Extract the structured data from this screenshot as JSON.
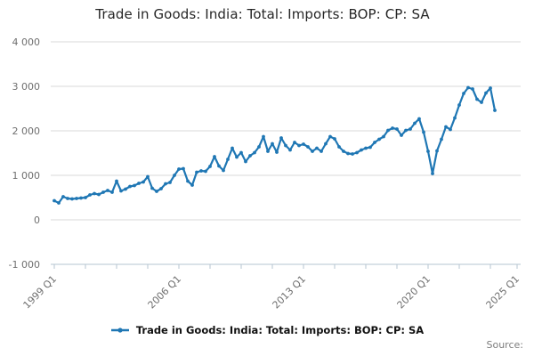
{
  "title": "Trade in Goods: India: Total: Imports: BOP: CP: SA",
  "legend": {
    "label": "Trade in Goods: India: Total: Imports: BOP: CP: SA"
  },
  "source": {
    "label": "Source:"
  },
  "colors": {
    "line": "#1f77b4",
    "marker": "#1f77b4",
    "grid": "#d9d9d9",
    "axis": "#b6c4d2",
    "tick_label": "#6f6f6f",
    "title_text": "#262626",
    "legend_text": "#111111",
    "source_text": "#7d7d7d",
    "background": "#ffffff"
  },
  "y_axis": {
    "min": -1000,
    "max": 4000,
    "step": 1000,
    "tick_labels": [
      "4 000",
      "3 000",
      "2 000",
      "1 000",
      "0",
      "-1 000"
    ]
  },
  "x_axis": {
    "labeled_ticks": [
      "1999 Q1",
      "2006 Q1",
      "2013 Q1",
      "2020 Q1",
      "2025 Q1"
    ],
    "range_start": "1999 Q1",
    "range_end": "2025 Q1"
  },
  "chart_data": {
    "type": "line",
    "title": "Trade in Goods: India: Total: Imports: BOP: CP: SA",
    "xlabel": "",
    "ylabel": "",
    "ylim": [
      -1000,
      4000
    ],
    "grid": "horizontal",
    "legend_position": "bottom",
    "marker": "circle",
    "frequency": "quarterly",
    "series": [
      {
        "name": "Trade in Goods: India: Total: Imports: BOP: CP: SA",
        "quarters": [
          "1999 Q1",
          "1999 Q2",
          "1999 Q3",
          "1999 Q4",
          "2000 Q1",
          "2000 Q2",
          "2000 Q3",
          "2000 Q4",
          "2001 Q1",
          "2001 Q2",
          "2001 Q3",
          "2001 Q4",
          "2002 Q1",
          "2002 Q2",
          "2002 Q3",
          "2002 Q4",
          "2003 Q1",
          "2003 Q2",
          "2003 Q3",
          "2003 Q4",
          "2004 Q1",
          "2004 Q2",
          "2004 Q3",
          "2004 Q4",
          "2005 Q1",
          "2005 Q2",
          "2005 Q3",
          "2005 Q4",
          "2006 Q1",
          "2006 Q2",
          "2006 Q3",
          "2006 Q4",
          "2007 Q1",
          "2007 Q2",
          "2007 Q3",
          "2007 Q4",
          "2008 Q1",
          "2008 Q2",
          "2008 Q3",
          "2008 Q4",
          "2009 Q1",
          "2009 Q2",
          "2009 Q3",
          "2009 Q4",
          "2010 Q1",
          "2010 Q2",
          "2010 Q3",
          "2010 Q4",
          "2011 Q1",
          "2011 Q2",
          "2011 Q3",
          "2011 Q4",
          "2012 Q1",
          "2012 Q2",
          "2012 Q3",
          "2012 Q4",
          "2013 Q1",
          "2013 Q2",
          "2013 Q3",
          "2013 Q4",
          "2014 Q1",
          "2014 Q2",
          "2014 Q3",
          "2014 Q4",
          "2015 Q1",
          "2015 Q2",
          "2015 Q3",
          "2015 Q4",
          "2016 Q1",
          "2016 Q2",
          "2016 Q3",
          "2016 Q4",
          "2017 Q1",
          "2017 Q2",
          "2017 Q3",
          "2017 Q4",
          "2018 Q1",
          "2018 Q2",
          "2018 Q3",
          "2018 Q4",
          "2019 Q1",
          "2019 Q2",
          "2019 Q3",
          "2019 Q4",
          "2020 Q1",
          "2020 Q2",
          "2020 Q3",
          "2020 Q4",
          "2021 Q1",
          "2021 Q2",
          "2021 Q3",
          "2021 Q4",
          "2022 Q1",
          "2022 Q2",
          "2022 Q3",
          "2022 Q4",
          "2023 Q1",
          "2023 Q2",
          "2023 Q3",
          "2023 Q4"
        ],
        "values": [
          430,
          380,
          520,
          480,
          470,
          480,
          490,
          500,
          560,
          590,
          570,
          620,
          660,
          620,
          870,
          650,
          690,
          750,
          770,
          820,
          850,
          970,
          710,
          640,
          700,
          810,
          840,
          1000,
          1140,
          1150,
          870,
          780,
          1070,
          1100,
          1090,
          1200,
          1420,
          1210,
          1110,
          1360,
          1610,
          1410,
          1510,
          1310,
          1440,
          1510,
          1640,
          1870,
          1540,
          1710,
          1520,
          1840,
          1670,
          1570,
          1740,
          1670,
          1700,
          1640,
          1540,
          1610,
          1540,
          1710,
          1870,
          1820,
          1640,
          1540,
          1490,
          1480,
          1510,
          1570,
          1610,
          1630,
          1740,
          1810,
          1870,
          2010,
          2060,
          2040,
          1900,
          2010,
          2040,
          2170,
          2270,
          1970,
          1540,
          1040,
          1550,
          1810,
          2090,
          2030,
          2290,
          2580,
          2840,
          2970,
          2940,
          2710,
          2640,
          2850,
          2960,
          2460
        ]
      }
    ]
  }
}
